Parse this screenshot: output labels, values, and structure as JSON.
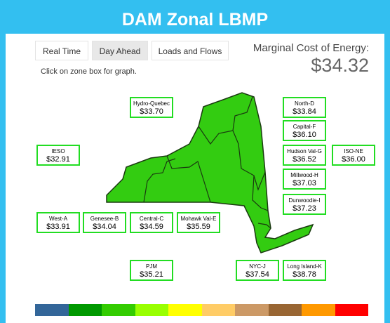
{
  "header": {
    "title": "DAM Zonal LBMP"
  },
  "tabs": [
    "Real Time",
    "Day Ahead",
    "Loads and Flows"
  ],
  "marginal_cost": {
    "label": "Marginal Cost of Energy:",
    "value": "$34.32"
  },
  "instruction": "Click on zone box for graph.",
  "zones": [
    {
      "name": "Hydro-Quebec",
      "price": "$33.70"
    },
    {
      "name": "North-D",
      "price": "$33.84"
    },
    {
      "name": "Capital-F",
      "price": "$36.10"
    },
    {
      "name": "IESO",
      "price": "$32.91"
    },
    {
      "name": "Hudson Val-G",
      "price": "$36.52"
    },
    {
      "name": "ISO-NE",
      "price": "$36.00"
    },
    {
      "name": "Millwood-H",
      "price": "$37.03"
    },
    {
      "name": "Dunwoodie-I",
      "price": "$37.23"
    },
    {
      "name": "West-A",
      "price": "$33.91"
    },
    {
      "name": "Genesee-B",
      "price": "$34.04"
    },
    {
      "name": "Central-C",
      "price": "$34.59"
    },
    {
      "name": "Mohawk Val-E",
      "price": "$35.59"
    },
    {
      "name": "PJM",
      "price": "$35.21"
    },
    {
      "name": "NYC-J",
      "price": "$37.54"
    },
    {
      "name": "Long Island-K",
      "price": "$38.78"
    }
  ]
}
